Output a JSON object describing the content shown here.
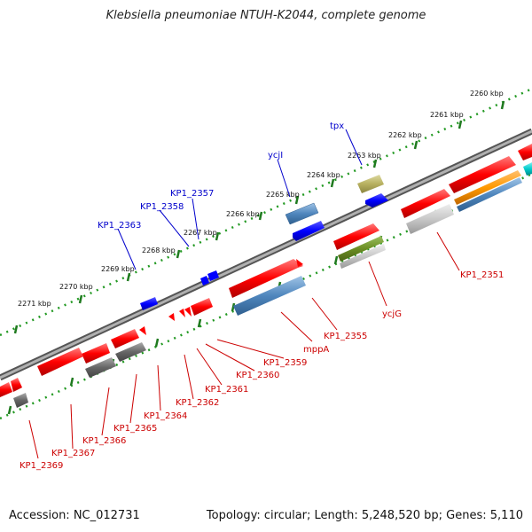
{
  "title": "Klebsiella pneumoniae NTUH-K2044, complete genome",
  "footer": {
    "accession": "Accession: NC_012731",
    "summary": "Topology: circular; Length: 5,248,520 bp; Genes: 5,110"
  },
  "scale_labels": [
    "2260 kbp",
    "2261 kbp",
    "2262 kbp",
    "2263 kbp",
    "2264 kbp",
    "2265 kbp",
    "2266 kbp",
    "2267 kbp",
    "2268 kbp",
    "2269 kbp",
    "2270 kbp",
    "2271 kbp"
  ],
  "gene_labels_top": [
    "tpx",
    "ycjI",
    "KP1_2357",
    "KP1_2358",
    "KP1_2363"
  ],
  "gene_labels_bottom": [
    "KP1_2351",
    "ycjG",
    "KP1_2355",
    "mppA",
    "KP1_2359",
    "KP1_2360",
    "KP1_2361",
    "KP1_2362",
    "KP1_2364",
    "KP1_2365",
    "KP1_2366",
    "KP1_2367",
    "KP1_2369"
  ],
  "colors": {
    "forward_gene": "#ff0000",
    "reverse_gene": "#0000ff",
    "forward_label": "#cc0000",
    "reverse_label": "#0000cc",
    "backbone": "#888888",
    "ticks": "#228822"
  }
}
